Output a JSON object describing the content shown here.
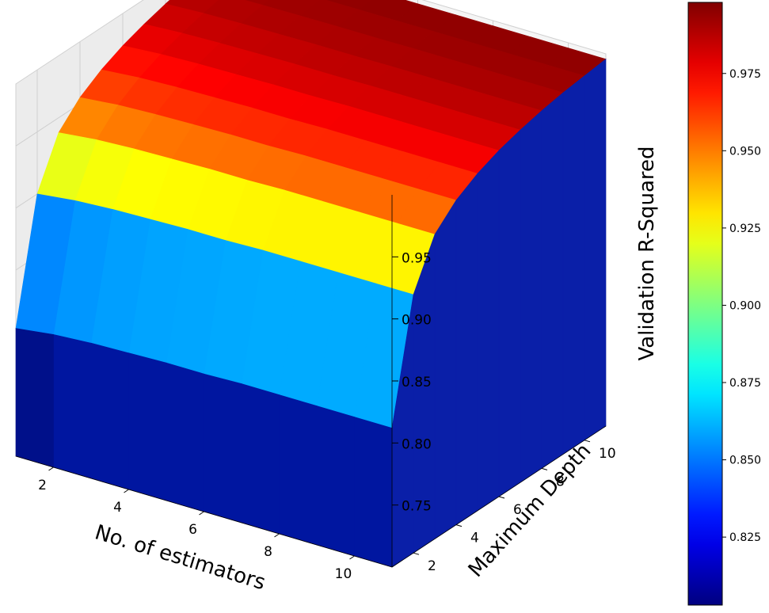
{
  "chart_data": {
    "type": "surface",
    "xlabel": "No. of estimators",
    "ylabel": "Maximum Depth",
    "zlabel": "Validation R-Squared",
    "x_ticks": [
      "2",
      "4",
      "6",
      "8",
      "10"
    ],
    "y_ticks": [
      "2",
      "4",
      "6",
      "8",
      "10"
    ],
    "z_ticks": [
      "0.75",
      "0.80",
      "0.85",
      "0.90",
      "0.95"
    ],
    "xlim": [
      1,
      11
    ],
    "ylim": [
      1,
      11
    ],
    "zlim": [
      0.7,
      1.0
    ],
    "x": [
      1,
      2,
      3,
      4,
      5,
      6,
      7,
      8,
      9,
      10,
      11
    ],
    "y": [
      1,
      2,
      3,
      4,
      5,
      6,
      7,
      8,
      9,
      10,
      11
    ],
    "z_by_depth": [
      0.803,
      0.9,
      0.938,
      0.955,
      0.966,
      0.974,
      0.98,
      0.985,
      0.989,
      0.992,
      0.995
    ],
    "z_estimator_offset": [
      0.0,
      0.004,
      0.006,
      0.007,
      0.008,
      0.008,
      0.009,
      0.009,
      0.009,
      0.009,
      0.009
    ],
    "colormap": "jet",
    "colorbar": {
      "range": [
        0.803,
        0.998
      ],
      "ticks": [
        "0.825",
        "0.850",
        "0.875",
        "0.900",
        "0.925",
        "0.950",
        "0.975"
      ],
      "tick_values": [
        0.825,
        0.85,
        0.875,
        0.9,
        0.925,
        0.95,
        0.975
      ]
    },
    "grid": true
  }
}
